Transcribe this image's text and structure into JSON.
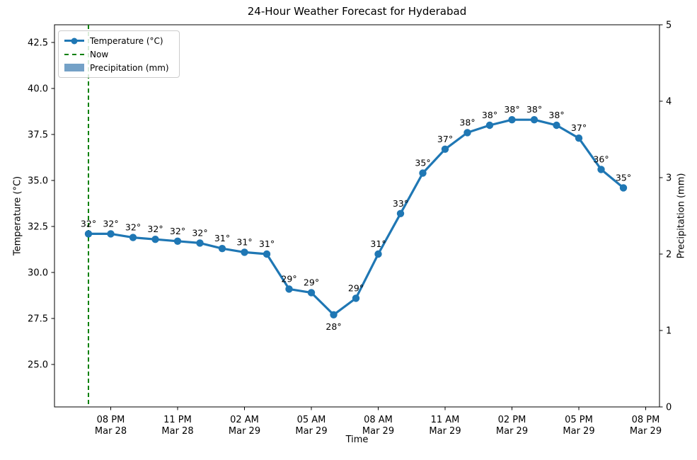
{
  "figure": {
    "title": "24-Hour Weather Forecast for Hyderabad",
    "xlabel": "Time",
    "ylabel_left": "Temperature (°C)",
    "ylabel_right": "Precipitation (mm)",
    "legend": {
      "temperature_label": "Temperature (°C)",
      "now_label": "Now",
      "precipitation_label": "Precipitation (mm)"
    },
    "colors": {
      "temperature_line": "#1f77b4",
      "now_line": "#008000",
      "precipitation_fill": "rgba(70,130,180,0.75)",
      "axis": "#000000",
      "legend_border": "#cccccc"
    }
  },
  "chart_data": {
    "type": "line",
    "title": "24-Hour Weather Forecast for Hyderabad",
    "xlabel": "Time",
    "ylabel": "Temperature (°C)",
    "y2label": "Precipitation (mm)",
    "grid": false,
    "legend_position": "upper left",
    "legend_entries": [
      "Temperature (°C)",
      "Now",
      "Precipitation (mm)"
    ],
    "x_tick_labels": [
      [
        "08 PM",
        "Mar 28"
      ],
      [
        "11 PM",
        "Mar 28"
      ],
      [
        "02 AM",
        "Mar 29"
      ],
      [
        "05 AM",
        "Mar 29"
      ],
      [
        "08 AM",
        "Mar 29"
      ],
      [
        "11 AM",
        "Mar 29"
      ],
      [
        "02 PM",
        "Mar 29"
      ],
      [
        "05 PM",
        "Mar 29"
      ],
      [
        "08 PM",
        "Mar 29"
      ]
    ],
    "x_tick_hours": [
      1,
      4,
      7,
      10,
      13,
      16,
      19,
      22,
      25
    ],
    "yticks_left": [
      "25.0",
      "27.5",
      "30.0",
      "32.5",
      "35.0",
      "37.5",
      "40.0",
      "42.5"
    ],
    "ylim_left": [
      22.7,
      43.5
    ],
    "yticks_right": [
      "0",
      "1",
      "2",
      "3",
      "4",
      "5"
    ],
    "ylim_right": [
      0,
      5
    ],
    "now_hour": 0,
    "series": [
      {
        "name": "Temperature (°C)",
        "type": "line",
        "x_hours": [
          0,
          1,
          2,
          3,
          4,
          5,
          6,
          7,
          8,
          9,
          10,
          11,
          12,
          13,
          14,
          15,
          16,
          17,
          18,
          19,
          20,
          21,
          22,
          23,
          24
        ],
        "times": [
          "07 PM Mar 28",
          "08 PM Mar 28",
          "09 PM Mar 28",
          "10 PM Mar 28",
          "11 PM Mar 28",
          "12 AM Mar 29",
          "01 AM Mar 29",
          "02 AM Mar 29",
          "03 AM Mar 29",
          "04 AM Mar 29",
          "05 AM Mar 29",
          "06 AM Mar 29",
          "07 AM Mar 29",
          "08 AM Mar 29",
          "09 AM Mar 29",
          "10 AM Mar 29",
          "11 AM Mar 29",
          "12 PM Mar 29",
          "01 PM Mar 29",
          "02 PM Mar 29",
          "03 PM Mar 29",
          "04 PM Mar 29",
          "05 PM Mar 29",
          "06 PM Mar 29",
          "07 PM Mar 29"
        ],
        "values": [
          32.1,
          32.1,
          31.9,
          31.8,
          31.7,
          31.6,
          31.3,
          31.1,
          31.0,
          29.1,
          28.9,
          27.7,
          28.6,
          31.0,
          33.2,
          35.4,
          36.7,
          37.6,
          38.0,
          38.3,
          38.3,
          38.0,
          37.3,
          35.6,
          34.6
        ],
        "point_labels": [
          "32°",
          "32°",
          "32°",
          "32°",
          "32°",
          "32°",
          "31°",
          "31°",
          "31°",
          "29°",
          "29°",
          "28°",
          "29°",
          "31°",
          "33°",
          "35°",
          "37°",
          "38°",
          "38°",
          "38°",
          "38°",
          "38°",
          "37°",
          "36°",
          "35°"
        ],
        "label_below_indices": [
          11
        ]
      },
      {
        "name": "Precipitation (mm)",
        "type": "bar",
        "values": [
          0,
          0,
          0,
          0,
          0,
          0,
          0,
          0,
          0,
          0,
          0,
          0,
          0,
          0,
          0,
          0,
          0,
          0,
          0,
          0,
          0,
          0,
          0,
          0,
          0
        ]
      }
    ]
  }
}
